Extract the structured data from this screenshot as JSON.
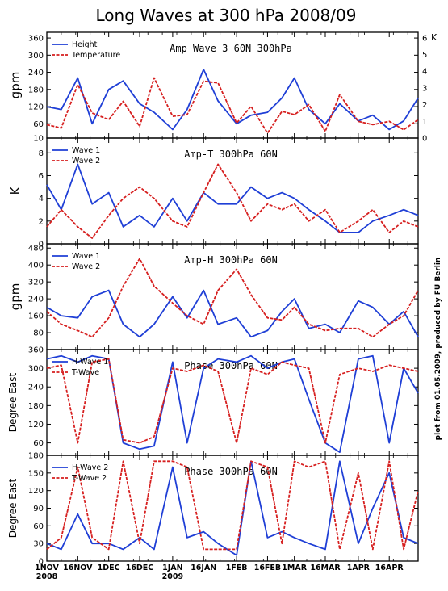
{
  "title": "Long Waves at 300 hPa 2008/09",
  "credit": "plot from 01.05.2009, produced by FU Berlin",
  "colors": {
    "series1": "#1f3fd6",
    "series2": "#d61f1f"
  },
  "x_axis": {
    "start": "2008-11-01",
    "end": "2009-04-30",
    "tick_labels": [
      [
        "1NOV",
        "2008"
      ],
      [
        "16NOV",
        ""
      ],
      [
        "1DEC",
        ""
      ],
      [
        "16DEC",
        ""
      ],
      [
        "1JAN",
        "2009"
      ],
      [
        "16JAN",
        ""
      ],
      [
        "1FEB",
        ""
      ],
      [
        "16FEB",
        ""
      ],
      [
        "1MAR",
        ""
      ],
      [
        "16MAR",
        ""
      ],
      [
        "1APR",
        ""
      ],
      [
        "16APR",
        ""
      ]
    ]
  },
  "chart_data": [
    {
      "type": "line",
      "title": "Amp Wave 3 60N 300hPa",
      "ylabel": "gpm",
      "ylim": [
        10,
        380
      ],
      "yticks": [
        10,
        60,
        120,
        180,
        240,
        300,
        360
      ],
      "y2label": "K",
      "y2lim": [
        0,
        6.33
      ],
      "y2ticks": [
        0,
        1,
        2,
        3,
        4,
        5,
        6
      ],
      "x": [
        "2008-11-01",
        "2008-11-08",
        "2008-11-16",
        "2008-11-23",
        "2008-12-01",
        "2008-12-08",
        "2008-12-16",
        "2008-12-23",
        "2009-01-01",
        "2009-01-08",
        "2009-01-16",
        "2009-01-23",
        "2009-02-01",
        "2009-02-08",
        "2009-02-16",
        "2009-02-23",
        "2009-03-01",
        "2009-03-08",
        "2009-03-16",
        "2009-03-23",
        "2009-04-01",
        "2009-04-08",
        "2009-04-16",
        "2009-04-23",
        "2009-04-30"
      ],
      "series": [
        {
          "name": "Height",
          "axis": "left",
          "values": [
            120,
            110,
            220,
            60,
            180,
            210,
            130,
            100,
            40,
            110,
            250,
            140,
            60,
            90,
            100,
            150,
            220,
            110,
            60,
            130,
            70,
            90,
            40,
            70,
            150
          ]
        },
        {
          "name": "Temperature",
          "axis": "right",
          "values": [
            0.8,
            0.6,
            3.2,
            1.5,
            1.1,
            2.2,
            0.7,
            3.6,
            1.3,
            1.4,
            3.4,
            3.3,
            0.9,
            1.9,
            0.3,
            1.6,
            1.4,
            2.0,
            0.4,
            2.6,
            1.0,
            0.8,
            1.0,
            0.5,
            1.1
          ]
        }
      ]
    },
    {
      "type": "line",
      "title": "Amp-T 300hPa 60N",
      "ylabel": "K",
      "ylim": [
        0,
        9.3
      ],
      "yticks": [
        0,
        2,
        4,
        6,
        8
      ],
      "x": [
        "2008-11-01",
        "2008-11-08",
        "2008-11-16",
        "2008-11-23",
        "2008-12-01",
        "2008-12-08",
        "2008-12-16",
        "2008-12-23",
        "2009-01-01",
        "2009-01-08",
        "2009-01-16",
        "2009-01-23",
        "2009-02-01",
        "2009-02-08",
        "2009-02-16",
        "2009-02-23",
        "2009-03-01",
        "2009-03-08",
        "2009-03-16",
        "2009-03-23",
        "2009-04-01",
        "2009-04-08",
        "2009-04-16",
        "2009-04-23",
        "2009-04-30"
      ],
      "series": [
        {
          "name": "Wave 1",
          "values": [
            5.2,
            3.0,
            7.0,
            3.5,
            4.5,
            1.5,
            2.5,
            1.5,
            4.0,
            2.0,
            4.5,
            3.5,
            3.5,
            5.0,
            4.0,
            4.5,
            4.0,
            3.0,
            2.0,
            1.0,
            1.0,
            2.0,
            2.5,
            3.0,
            2.5
          ]
        },
        {
          "name": "Wave 2",
          "values": [
            1.5,
            3.0,
            1.5,
            0.5,
            2.5,
            4.0,
            5.0,
            4.0,
            2.0,
            1.5,
            4.5,
            7.0,
            4.5,
            2.0,
            3.5,
            3.0,
            3.5,
            2.0,
            3.0,
            1.0,
            2.0,
            3.0,
            1.0,
            2.0,
            1.5
          ]
        }
      ]
    },
    {
      "type": "line",
      "title": "Amp-H 300hPa 60N",
      "ylabel": "gpm",
      "ylim": [
        0,
        500
      ],
      "yticks": [
        80,
        160,
        240,
        320,
        400,
        480
      ],
      "x": [
        "2008-11-01",
        "2008-11-08",
        "2008-11-16",
        "2008-11-23",
        "2008-12-01",
        "2008-12-08",
        "2008-12-16",
        "2008-12-23",
        "2009-01-01",
        "2009-01-08",
        "2009-01-16",
        "2009-01-23",
        "2009-02-01",
        "2009-02-08",
        "2009-02-16",
        "2009-02-23",
        "2009-03-01",
        "2009-03-08",
        "2009-03-16",
        "2009-03-23",
        "2009-04-01",
        "2009-04-08",
        "2009-04-16",
        "2009-04-23",
        "2009-04-30"
      ],
      "series": [
        {
          "name": "Wave 1",
          "values": [
            200,
            160,
            150,
            250,
            280,
            120,
            60,
            120,
            250,
            150,
            280,
            120,
            150,
            60,
            90,
            180,
            240,
            100,
            120,
            80,
            230,
            200,
            120,
            180,
            60
          ]
        },
        {
          "name": "Wave 2",
          "values": [
            180,
            120,
            90,
            60,
            150,
            300,
            430,
            300,
            220,
            160,
            120,
            280,
            380,
            260,
            150,
            140,
            200,
            120,
            90,
            100,
            100,
            60,
            120,
            160,
            280
          ]
        }
      ]
    },
    {
      "type": "line",
      "title": "Phase 300hPa 60N",
      "ylabel": "Degree East",
      "ylim": [
        20,
        360
      ],
      "yticks": [
        60,
        120,
        180,
        240,
        300,
        360
      ],
      "x": [
        "2008-11-01",
        "2008-11-08",
        "2008-11-16",
        "2008-11-23",
        "2008-12-01",
        "2008-12-08",
        "2008-12-16",
        "2008-12-23",
        "2009-01-01",
        "2009-01-08",
        "2009-01-16",
        "2009-01-23",
        "2009-02-01",
        "2009-02-08",
        "2009-02-16",
        "2009-02-23",
        "2009-03-01",
        "2009-03-08",
        "2009-03-16",
        "2009-03-23",
        "2009-04-01",
        "2009-04-08",
        "2009-04-16",
        "2009-04-23",
        "2009-04-30"
      ],
      "series": [
        {
          "name": "H-Wave 1",
          "values": [
            330,
            340,
            320,
            340,
            330,
            60,
            40,
            50,
            320,
            60,
            300,
            330,
            320,
            340,
            300,
            320,
            330,
            200,
            60,
            30,
            330,
            340,
            60,
            300,
            220
          ]
        },
        {
          "name": "T-Wave",
          "values": [
            300,
            310,
            60,
            320,
            330,
            70,
            60,
            80,
            300,
            290,
            310,
            290,
            60,
            300,
            280,
            320,
            310,
            300,
            60,
            280,
            300,
            290,
            310,
            300,
            290
          ]
        }
      ]
    },
    {
      "type": "line",
      "title": "Phase 300hPa 60N",
      "ylabel": "Degree East",
      "ylim": [
        0,
        180
      ],
      "yticks": [
        0,
        30,
        60,
        90,
        120,
        150,
        180
      ],
      "x": [
        "2008-11-01",
        "2008-11-08",
        "2008-11-16",
        "2008-11-23",
        "2008-12-01",
        "2008-12-08",
        "2008-12-16",
        "2008-12-23",
        "2009-01-01",
        "2009-01-08",
        "2009-01-16",
        "2009-01-23",
        "2009-02-01",
        "2009-02-08",
        "2009-02-16",
        "2009-02-23",
        "2009-03-01",
        "2009-03-08",
        "2009-03-16",
        "2009-03-23",
        "2009-04-01",
        "2009-04-08",
        "2009-04-16",
        "2009-04-23",
        "2009-04-30"
      ],
      "series": [
        {
          "name": "H-Wave 2",
          "values": [
            30,
            20,
            80,
            30,
            30,
            20,
            40,
            20,
            160,
            40,
            50,
            30,
            10,
            170,
            40,
            50,
            40,
            30,
            20,
            170,
            30,
            90,
            150,
            40,
            30
          ]
        },
        {
          "name": "T-Wave 2",
          "values": [
            20,
            40,
            160,
            40,
            20,
            170,
            30,
            170,
            170,
            160,
            20,
            20,
            20,
            170,
            160,
            30,
            170,
            160,
            170,
            20,
            150,
            20,
            170,
            20,
            120
          ]
        }
      ]
    }
  ]
}
